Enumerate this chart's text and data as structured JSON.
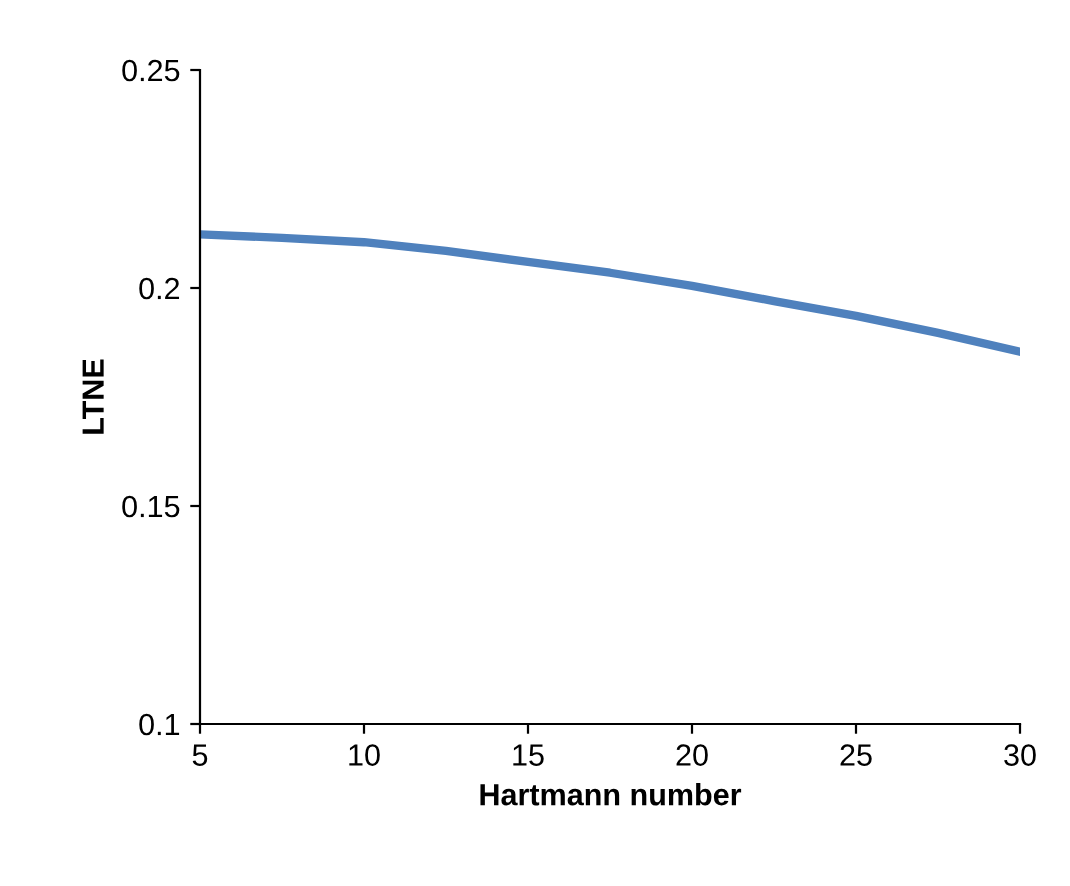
{
  "chart_data": {
    "type": "line",
    "xlabel": "Hartmann number",
    "ylabel": "LTNE",
    "x": [
      5,
      7.5,
      10,
      12.5,
      15,
      17.5,
      20,
      22.5,
      25,
      27.5,
      30
    ],
    "series": [
      {
        "color": "#4f81bd",
        "values": [
          0.2123,
          0.2115,
          0.2105,
          0.2085,
          0.206,
          0.2035,
          0.2005,
          0.197,
          0.1936,
          0.1897,
          0.1854
        ]
      }
    ],
    "xlim": [
      5,
      30
    ],
    "xticks": [
      5,
      10,
      15,
      20,
      25,
      30
    ],
    "ylim": [
      0.1,
      0.25
    ],
    "yticks": [
      0.1,
      0.15,
      0.2,
      0.25
    ],
    "grid": false,
    "legend": false,
    "marker": "none",
    "line_style": "solid"
  }
}
